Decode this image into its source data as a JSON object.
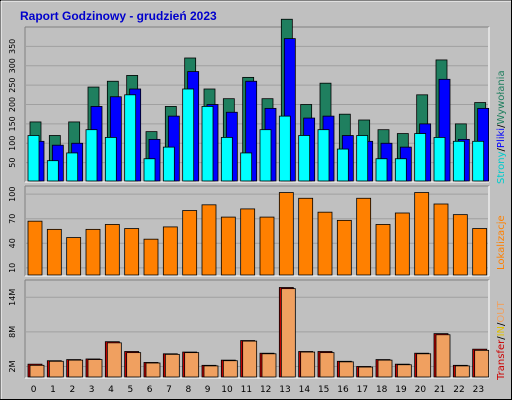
{
  "title": "Raport Godzinowy -  grudzień 2023",
  "colors": {
    "frame_bg": "#C0C0C0",
    "plot_bg": "#C0C0C0",
    "grid": "#A0A0A0",
    "title": "#0000CC",
    "hits": "#1F7F5F",
    "files": "#0000FF",
    "pages": "#00FFFF",
    "sites": "#FF8000",
    "kbytes": "#CC0000",
    "kbytes_in": "#FFCC00",
    "kbytes_out": "#F0A060"
  },
  "legend": {
    "strony": "Strony",
    "sep1": "/",
    "pliki": "Pliki",
    "sep2": "/",
    "wywolania": "Wywołania",
    "lokalizacje": "Lokalizacje",
    "transfer": "Transfer",
    "sep3": "/",
    "in": "IN",
    "sep4": "/",
    "out": "OUT"
  },
  "chart_data": [
    {
      "type": "bar",
      "name": "hits-files-pages",
      "categories": [
        "0",
        "1",
        "2",
        "3",
        "4",
        "5",
        "6",
        "7",
        "8",
        "9",
        "10",
        "11",
        "12",
        "13",
        "14",
        "15",
        "16",
        "17",
        "18",
        "19",
        "20",
        "21",
        "22",
        "23"
      ],
      "yticks": [
        50,
        100,
        150,
        200,
        250,
        300,
        350
      ],
      "ylim": [
        0,
        400
      ],
      "series": [
        {
          "name": "Wywołania",
          "values": [
            155,
            120,
            155,
            245,
            260,
            275,
            130,
            195,
            320,
            240,
            215,
            270,
            215,
            420,
            200,
            255,
            175,
            160,
            135,
            125,
            225,
            315,
            150,
            205
          ]
        },
        {
          "name": "Pliki",
          "values": [
            105,
            95,
            100,
            195,
            220,
            240,
            110,
            170,
            285,
            200,
            180,
            260,
            190,
            370,
            165,
            170,
            120,
            105,
            100,
            90,
            150,
            265,
            110,
            190
          ]
        },
        {
          "name": "Strony",
          "values": [
            120,
            55,
            75,
            135,
            115,
            225,
            60,
            90,
            240,
            195,
            115,
            75,
            135,
            170,
            120,
            135,
            85,
            120,
            60,
            60,
            125,
            115,
            105,
            105
          ]
        }
      ]
    },
    {
      "type": "bar",
      "name": "sites",
      "categories": [
        "0",
        "1",
        "2",
        "3",
        "4",
        "5",
        "6",
        "7",
        "8",
        "9",
        "10",
        "11",
        "12",
        "13",
        "14",
        "15",
        "16",
        "17",
        "18",
        "19",
        "20",
        "21",
        "22",
        "23"
      ],
      "yticks": [
        10,
        40,
        70,
        100
      ],
      "ylim": [
        0,
        110
      ],
      "series": [
        {
          "name": "Lokalizacje",
          "values": [
            67,
            57,
            47,
            57,
            63,
            58,
            45,
            60,
            80,
            87,
            72,
            82,
            72,
            102,
            95,
            78,
            68,
            95,
            63,
            77,
            102,
            88,
            75,
            58
          ]
        }
      ]
    },
    {
      "type": "bar",
      "name": "traffic",
      "categories": [
        "0",
        "1",
        "2",
        "3",
        "4",
        "5",
        "6",
        "7",
        "8",
        "9",
        "10",
        "11",
        "12",
        "13",
        "14",
        "15",
        "16",
        "17",
        "18",
        "19",
        "20",
        "21",
        "22",
        "23"
      ],
      "yticks_labels": [
        "2M",
        "8M",
        "14M"
      ],
      "yticks": [
        2,
        8,
        14
      ],
      "ylim": [
        0,
        17
      ],
      "series": [
        {
          "name": "Transfer",
          "values": [
            2.4,
            3.0,
            3.2,
            3.3,
            6.3,
            4.6,
            2.7,
            4.2,
            4.5,
            2.2,
            3.1,
            6.5,
            4.3,
            15.7,
            4.6,
            4.6,
            2.9,
            2.0,
            3.2,
            2.4,
            4.3,
            7.7,
            2.2,
            5.0
          ]
        },
        {
          "name": "OUT",
          "values": [
            2.2,
            2.9,
            3.1,
            3.2,
            6.1,
            4.4,
            2.6,
            4.1,
            4.4,
            2.1,
            3.0,
            6.4,
            4.2,
            15.5,
            4.5,
            4.4,
            2.8,
            1.9,
            3.1,
            2.3,
            4.2,
            7.5,
            2.1,
            4.8
          ]
        }
      ]
    }
  ]
}
